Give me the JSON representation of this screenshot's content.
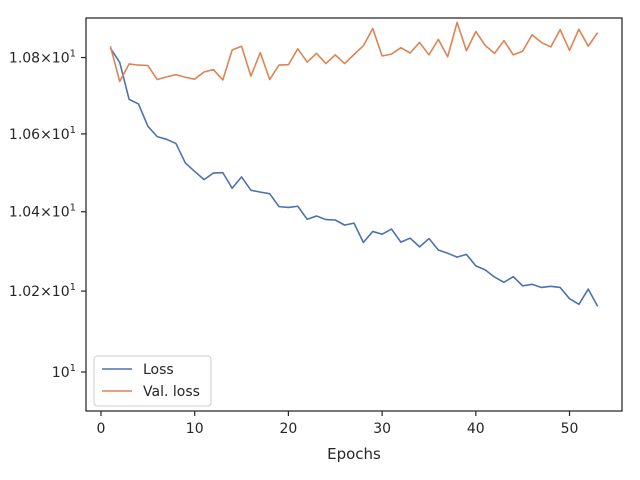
{
  "chart_data": {
    "type": "line",
    "title": "",
    "xlabel": "Epochs",
    "ylabel": "",
    "yscale": "log",
    "xlim": [
      -1.6,
      55.6
    ],
    "ylim": [
      9.905,
      10.905
    ],
    "grid": false,
    "legend_position": "lower-left",
    "x_ticks": [
      0,
      10,
      20,
      30,
      40,
      50
    ],
    "x_tick_labels": [
      "0",
      "10",
      "20",
      "30",
      "40",
      "50"
    ],
    "y_ticks": [
      10,
      10.2,
      10.4,
      10.6,
      10.8
    ],
    "y_tick_labels": [
      "10^1",
      "1.02×10^1",
      "1.04×10^1",
      "1.06×10^1",
      "1.08×10^1"
    ],
    "x": [
      1,
      2,
      3,
      4,
      5,
      6,
      7,
      8,
      9,
      10,
      11,
      12,
      13,
      14,
      15,
      16,
      17,
      18,
      19,
      20,
      21,
      22,
      23,
      24,
      25,
      26,
      27,
      28,
      29,
      30,
      31,
      32,
      33,
      34,
      35,
      36,
      37,
      38,
      39,
      40,
      41,
      42,
      43,
      44,
      45,
      46,
      47,
      48,
      49,
      50,
      51,
      52,
      53
    ],
    "series": [
      {
        "name": "Loss",
        "color": "#4c72b0",
        "values": [
          10.825,
          10.787,
          10.69,
          10.678,
          10.62,
          10.593,
          10.586,
          10.575,
          10.525,
          10.503,
          10.482,
          10.499,
          10.5,
          10.46,
          10.489,
          10.455,
          10.45,
          10.446,
          10.413,
          10.411,
          10.414,
          10.381,
          10.389,
          10.38,
          10.379,
          10.366,
          10.371,
          10.322,
          10.35,
          10.343,
          10.356,
          10.323,
          10.333,
          10.311,
          10.332,
          10.303,
          10.295,
          10.285,
          10.292,
          10.263,
          10.253,
          10.235,
          10.222,
          10.236,
          10.213,
          10.217,
          10.209,
          10.212,
          10.209,
          10.181,
          10.167,
          10.205,
          10.162
        ]
      },
      {
        "name": "Val. loss",
        "color": "#dd8452",
        "values": [
          10.83,
          10.737,
          10.783,
          10.78,
          10.779,
          10.742,
          10.749,
          10.755,
          10.748,
          10.743,
          10.762,
          10.768,
          10.741,
          10.82,
          10.83,
          10.751,
          10.813,
          10.742,
          10.78,
          10.781,
          10.823,
          10.788,
          10.811,
          10.784,
          10.807,
          10.784,
          10.808,
          10.831,
          10.877,
          10.804,
          10.809,
          10.826,
          10.812,
          10.84,
          10.807,
          10.848,
          10.802,
          10.893,
          10.818,
          10.869,
          10.832,
          10.811,
          10.845,
          10.807,
          10.817,
          10.86,
          10.84,
          10.828,
          10.874,
          10.819,
          10.875,
          10.83,
          10.866
        ]
      }
    ]
  }
}
